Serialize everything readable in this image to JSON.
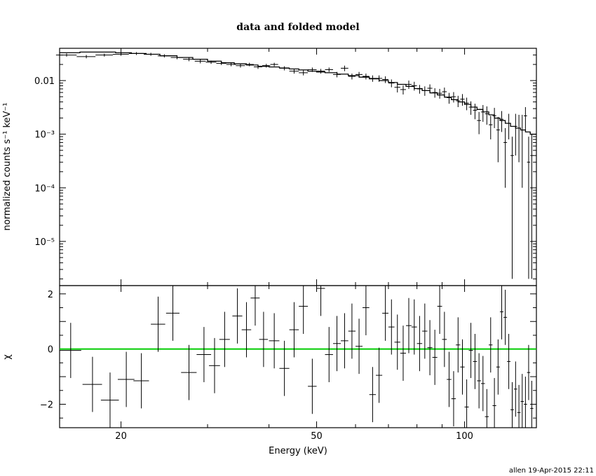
{
  "chart_data": [
    {
      "type": "scatter",
      "panel": "spectrum",
      "title": "data and folded model",
      "ylabel": "normalized counts s⁻¹ keV⁻¹",
      "xscale": "log",
      "yscale": "log",
      "xlim": [
        15,
        140
      ],
      "ylim": [
        1.5e-06,
        0.04
      ],
      "ytick_labels": [
        "0.01",
        "10⁻³",
        "10⁻⁴",
        "10⁻⁵"
      ],
      "yticks": [
        0.01,
        0.001,
        0.0001,
        1e-05
      ],
      "series": [
        {
          "role": "data",
          "x": [
            15.5,
            17.0,
            18.5,
            20.0,
            21.5,
            23.0,
            24.5,
            26.0,
            27.5,
            29.0,
            30.5,
            32.0,
            33.5,
            35.0,
            36.5,
            38.0,
            39.5,
            41.0,
            43.0,
            45.0,
            47.0,
            49.0,
            51.0,
            53.0,
            55.0,
            57.0,
            59.0,
            61.0,
            63.0,
            65.0,
            67.0,
            69.0,
            71.0,
            73.0,
            75.0,
            77.0,
            79.0,
            81.0,
            83.0,
            85.0,
            87.0,
            89.0,
            91.0,
            93.0,
            95.0,
            97.0,
            99.0,
            101.0,
            103.0,
            105.0,
            107.0,
            109.0,
            111.0,
            113.0,
            115.0,
            117.0,
            119.0,
            121.0,
            123.0,
            125.0,
            127.0,
            129.0,
            131.0,
            133.0,
            135.0,
            137.0
          ],
          "y": [
            0.03,
            0.028,
            0.03,
            0.031,
            0.032,
            0.031,
            0.029,
            0.027,
            0.025,
            0.023,
            0.022,
            0.021,
            0.02,
            0.019,
            0.02,
            0.018,
            0.019,
            0.02,
            0.017,
            0.015,
            0.014,
            0.016,
            0.015,
            0.016,
            0.013,
            0.017,
            0.012,
            0.013,
            0.012,
            0.011,
            0.011,
            0.0105,
            0.009,
            0.0075,
            0.0068,
            0.0085,
            0.008,
            0.007,
            0.0065,
            0.0072,
            0.006,
            0.0058,
            0.0062,
            0.0048,
            0.005,
            0.0042,
            0.0045,
            0.0038,
            0.0032,
            0.0028,
            0.0018,
            0.0026,
            0.0024,
            0.0015,
            0.0022,
            0.0012,
            0.0019,
            0.0007,
            0.0016,
            0.0004,
            0.0014,
            0.0013,
            0.0012,
            0.0022,
            0.0003,
            0.0004
          ],
          "xerr": [
            0.75,
            0.75,
            0.75,
            0.75,
            0.75,
            0.75,
            0.75,
            0.75,
            0.75,
            0.75,
            0.75,
            0.75,
            0.75,
            0.75,
            0.75,
            0.75,
            0.75,
            0.75,
            1.0,
            1.0,
            1.0,
            1.0,
            1.0,
            1.0,
            1.0,
            1.0,
            1.0,
            1.0,
            1.0,
            1.0,
            1.0,
            1.0,
            1.0,
            1.0,
            1.0,
            1.0,
            1.0,
            1.0,
            1.0,
            1.0,
            1.0,
            1.0,
            1.0,
            1.0,
            1.0,
            1.0,
            1.0,
            1.0,
            1.0,
            1.0,
            1.0,
            1.0,
            1.0,
            1.0,
            1.0,
            1.0,
            1.0,
            1.0,
            1.0,
            1.0,
            1.0,
            1.0,
            1.0,
            1.0,
            1.0,
            1.0
          ],
          "ylo": [
            0.028,
            0.026,
            0.028,
            0.029,
            0.03,
            0.029,
            0.027,
            0.025,
            0.023,
            0.021,
            0.0205,
            0.0195,
            0.0185,
            0.0175,
            0.0185,
            0.0165,
            0.0175,
            0.0185,
            0.0155,
            0.0135,
            0.0125,
            0.0145,
            0.0135,
            0.0145,
            0.0115,
            0.015,
            0.0105,
            0.0115,
            0.0105,
            0.0095,
            0.0095,
            0.009,
            0.0075,
            0.006,
            0.0055,
            0.007,
            0.0065,
            0.0057,
            0.0052,
            0.0059,
            0.0048,
            0.0046,
            0.005,
            0.0037,
            0.0039,
            0.0032,
            0.0034,
            0.0028,
            0.0023,
            0.0019,
            0.001,
            0.0017,
            0.0015,
            0.0008,
            0.0013,
            0.0003,
            0.0011,
            0.0001,
            0.0008,
            2e-06,
            0.0004,
            0.0003,
            0.0001,
            0.0012,
            2e-06,
            2e-06
          ],
          "yhi": [
            0.032,
            0.03,
            0.032,
            0.033,
            0.034,
            0.033,
            0.031,
            0.029,
            0.027,
            0.025,
            0.0235,
            0.0225,
            0.0215,
            0.0205,
            0.0215,
            0.0195,
            0.0205,
            0.0215,
            0.0185,
            0.0165,
            0.0155,
            0.0175,
            0.0165,
            0.0175,
            0.0145,
            0.019,
            0.0135,
            0.0145,
            0.0135,
            0.0125,
            0.0125,
            0.012,
            0.0105,
            0.009,
            0.0081,
            0.01,
            0.0095,
            0.0083,
            0.0078,
            0.0085,
            0.0072,
            0.007,
            0.0074,
            0.0059,
            0.0061,
            0.0052,
            0.0056,
            0.0048,
            0.0041,
            0.0037,
            0.0026,
            0.0035,
            0.0033,
            0.0022,
            0.0031,
            0.0021,
            0.0027,
            0.0013,
            0.0024,
            0.0009,
            0.0024,
            0.0023,
            0.0023,
            0.0032,
            0.0009,
            0.001
          ]
        },
        {
          "role": "model",
          "x": [
            15,
            16.5,
            18,
            19.5,
            21,
            22.5,
            24,
            26,
            28,
            30,
            32,
            34,
            36,
            38,
            40,
            42,
            44,
            46,
            48,
            50,
            52,
            55,
            58,
            61,
            64,
            67,
            70,
            73,
            76,
            79,
            82,
            85,
            88,
            91,
            94,
            97,
            100,
            103,
            106,
            109,
            112,
            115,
            118,
            121,
            124,
            127,
            130,
            133,
            136,
            140
          ],
          "y": [
            0.033,
            0.034,
            0.034,
            0.033,
            0.032,
            0.031,
            0.029,
            0.027,
            0.025,
            0.023,
            0.0215,
            0.0205,
            0.0195,
            0.0185,
            0.018,
            0.0172,
            0.0165,
            0.0158,
            0.015,
            0.0145,
            0.014,
            0.0132,
            0.0124,
            0.0116,
            0.0108,
            0.01,
            0.0092,
            0.0085,
            0.0078,
            0.0071,
            0.0065,
            0.0059,
            0.0054,
            0.0049,
            0.0044,
            0.004,
            0.0036,
            0.0032,
            0.0029,
            0.0026,
            0.0023,
            0.002,
            0.0018,
            0.0016,
            0.0014,
            0.0013,
            0.0012,
            0.0011,
            0.001,
            0.00092
          ]
        }
      ]
    },
    {
      "type": "scatter",
      "panel": "residuals",
      "xlabel": "Energy (keV)",
      "ylabel": "χ",
      "xscale": "log",
      "xlim": [
        15,
        140
      ],
      "ylim": [
        -2.85,
        2.3
      ],
      "xticks": [
        20,
        50,
        100
      ],
      "xtick_labels": [
        "20",
        "50",
        "100"
      ],
      "yticks": [
        -2,
        0,
        2
      ],
      "ytick_labels": [
        "−2",
        "0",
        "2"
      ],
      "zero_line_color": "#00cc00",
      "series": [
        {
          "role": "residual",
          "x": [
            15.8,
            17.5,
            19.0,
            20.5,
            22.0,
            23.8,
            25.5,
            27.5,
            29.5,
            31.0,
            32.5,
            34.5,
            36.0,
            37.5,
            39.0,
            41.0,
            43.0,
            45.0,
            47.0,
            49.0,
            51.0,
            53.0,
            55.0,
            57.0,
            59.0,
            61.0,
            63.0,
            65.0,
            67.0,
            69.0,
            71.0,
            73.0,
            75.0,
            77.0,
            79.0,
            81.0,
            83.0,
            85.0,
            87.0,
            89.0,
            91.0,
            93.0,
            95.0,
            97.0,
            99.0,
            101.0,
            103.0,
            105.0,
            107.0,
            109.0,
            111.0,
            113.0,
            115.0,
            117.0,
            119.0,
            121.0,
            123.0,
            125.0,
            127.0,
            129.0,
            131.0,
            133.0,
            135.0,
            137.0
          ],
          "y": [
            -0.05,
            -1.28,
            -1.85,
            -1.1,
            -1.15,
            0.9,
            1.3,
            -0.85,
            -0.2,
            -0.6,
            0.35,
            1.2,
            0.7,
            1.85,
            0.35,
            0.3,
            -0.7,
            0.7,
            1.55,
            -1.35,
            2.2,
            -0.2,
            0.2,
            0.3,
            0.65,
            0.1,
            1.5,
            -1.65,
            -0.95,
            1.3,
            0.8,
            0.25,
            -0.15,
            0.85,
            0.8,
            0.2,
            0.65,
            0.05,
            -0.3,
            1.55,
            0.35,
            -1.1,
            -1.8,
            0.15,
            -0.65,
            -2.1,
            -0.05,
            -0.45,
            -1.15,
            -1.25,
            -2.45,
            0.15,
            -2.05,
            -0.65,
            1.35,
            1.15,
            -0.45,
            -2.2,
            -1.45,
            -2.3,
            -1.9,
            -2.0,
            -0.85,
            -2.15
          ],
          "xerr": [
            0.8,
            0.8,
            0.8,
            0.8,
            0.8,
            0.8,
            0.8,
            1.0,
            1.0,
            0.8,
            0.8,
            0.8,
            0.8,
            0.8,
            0.8,
            1.0,
            1.0,
            1.0,
            1.0,
            1.0,
            1.0,
            1.0,
            1.0,
            1.0,
            1.0,
            1.0,
            1.0,
            1.0,
            1.0,
            1.0,
            1.0,
            1.0,
            1.0,
            1.0,
            1.0,
            1.0,
            1.0,
            1.0,
            1.0,
            1.0,
            1.0,
            1.0,
            1.0,
            1.0,
            1.0,
            1.0,
            1.0,
            1.0,
            1.0,
            1.0,
            1.0,
            1.0,
            1.0,
            1.0,
            1.0,
            1.0,
            1.0,
            1.0,
            1.0,
            1.0,
            1.0,
            1.0,
            1.0,
            1.0
          ],
          "yerr": [
            1.0,
            1.0,
            1.0,
            1.0,
            1.0,
            1.0,
            1.0,
            1.0,
            1.0,
            1.0,
            1.0,
            1.0,
            1.0,
            1.0,
            1.0,
            1.0,
            1.0,
            1.0,
            1.0,
            1.0,
            1.0,
            1.0,
            1.0,
            1.0,
            1.0,
            1.0,
            1.0,
            1.0,
            1.0,
            1.0,
            1.0,
            1.0,
            1.0,
            1.0,
            1.0,
            1.0,
            1.0,
            1.0,
            1.0,
            1.0,
            1.0,
            1.0,
            1.0,
            1.0,
            1.0,
            1.0,
            1.0,
            1.0,
            1.0,
            1.0,
            1.0,
            1.0,
            1.0,
            1.0,
            1.0,
            1.0,
            1.0,
            1.0,
            1.0,
            1.0,
            1.0,
            1.0,
            1.0,
            1.0
          ]
        }
      ]
    }
  ],
  "footer": "allen 19-Apr-2015 22:11"
}
